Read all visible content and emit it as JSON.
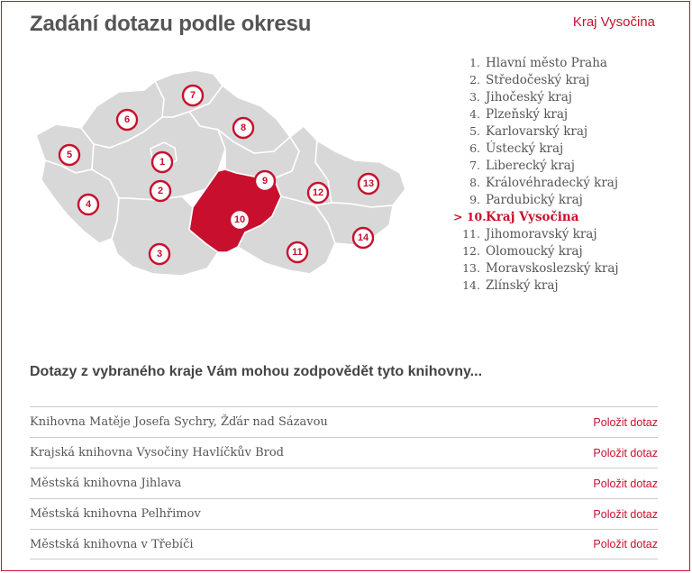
{
  "header": {
    "title": "Zadání dotazu podle okresu",
    "selected_region": "Kraj Vysočina"
  },
  "map": {
    "markers": [
      "1",
      "2",
      "3",
      "4",
      "5",
      "6",
      "7",
      "8",
      "9",
      "10",
      "11",
      "12",
      "13",
      "14"
    ],
    "active_marker": "10"
  },
  "regions": [
    {
      "num": "1.",
      "label": "Hlavní město Praha"
    },
    {
      "num": "2.",
      "label": "Středočeský kraj"
    },
    {
      "num": "3.",
      "label": "Jihočeský kraj"
    },
    {
      "num": "4.",
      "label": "Plzeňský kraj"
    },
    {
      "num": "5.",
      "label": "Karlovarský kraj"
    },
    {
      "num": "6.",
      "label": "Ústecký kraj"
    },
    {
      "num": "7.",
      "label": "Liberecký kraj"
    },
    {
      "num": "8.",
      "label": "Královéhradecký kraj"
    },
    {
      "num": "9.",
      "label": "Pardubický kraj"
    },
    {
      "num": "10.",
      "label": "Kraj Vysočina",
      "active": true
    },
    {
      "num": "11.",
      "label": "Jihomoravský kraj"
    },
    {
      "num": "12.",
      "label": "Olomoucký kraj"
    },
    {
      "num": "13.",
      "label": "Moravskoslezský kraj"
    },
    {
      "num": "14.",
      "label": "Zlínský kraj"
    }
  ],
  "libraries": {
    "heading": "Dotazy z vybraného kraje Vám mohou zodpovědět tyto knihovny...",
    "ask_label": "Položit dotaz",
    "items": [
      "Knihovna Matěje Josefa Sychry, Žďár nad Sázavou",
      "Krajská knihovna Vysočiny Havlíčkův Brod",
      "Městská knihovna Jihlava",
      "Městská knihovna Pelhřimov",
      "Městská knihovna v Třebíči"
    ]
  },
  "colors": {
    "accent": "#c8102e",
    "map_fill": "#d8d8d8",
    "text": "#555555"
  }
}
